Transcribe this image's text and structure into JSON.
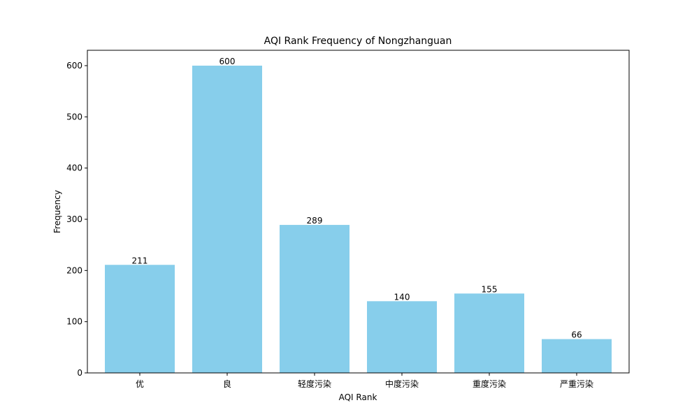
{
  "chart_data": {
    "type": "bar",
    "title": "AQI Rank Frequency of Nongzhanguan",
    "xlabel": "AQI Rank",
    "ylabel": "Frequency",
    "categories": [
      "优",
      "良",
      "轻度污染",
      "中度污染",
      "重度污染",
      "严重污染"
    ],
    "values": [
      211,
      600,
      289,
      140,
      155,
      66
    ],
    "ylim": [
      0,
      630
    ],
    "yticks": [
      0,
      100,
      200,
      300,
      400,
      500,
      600
    ],
    "bar_color": "#87ceeb",
    "grid": false
  }
}
